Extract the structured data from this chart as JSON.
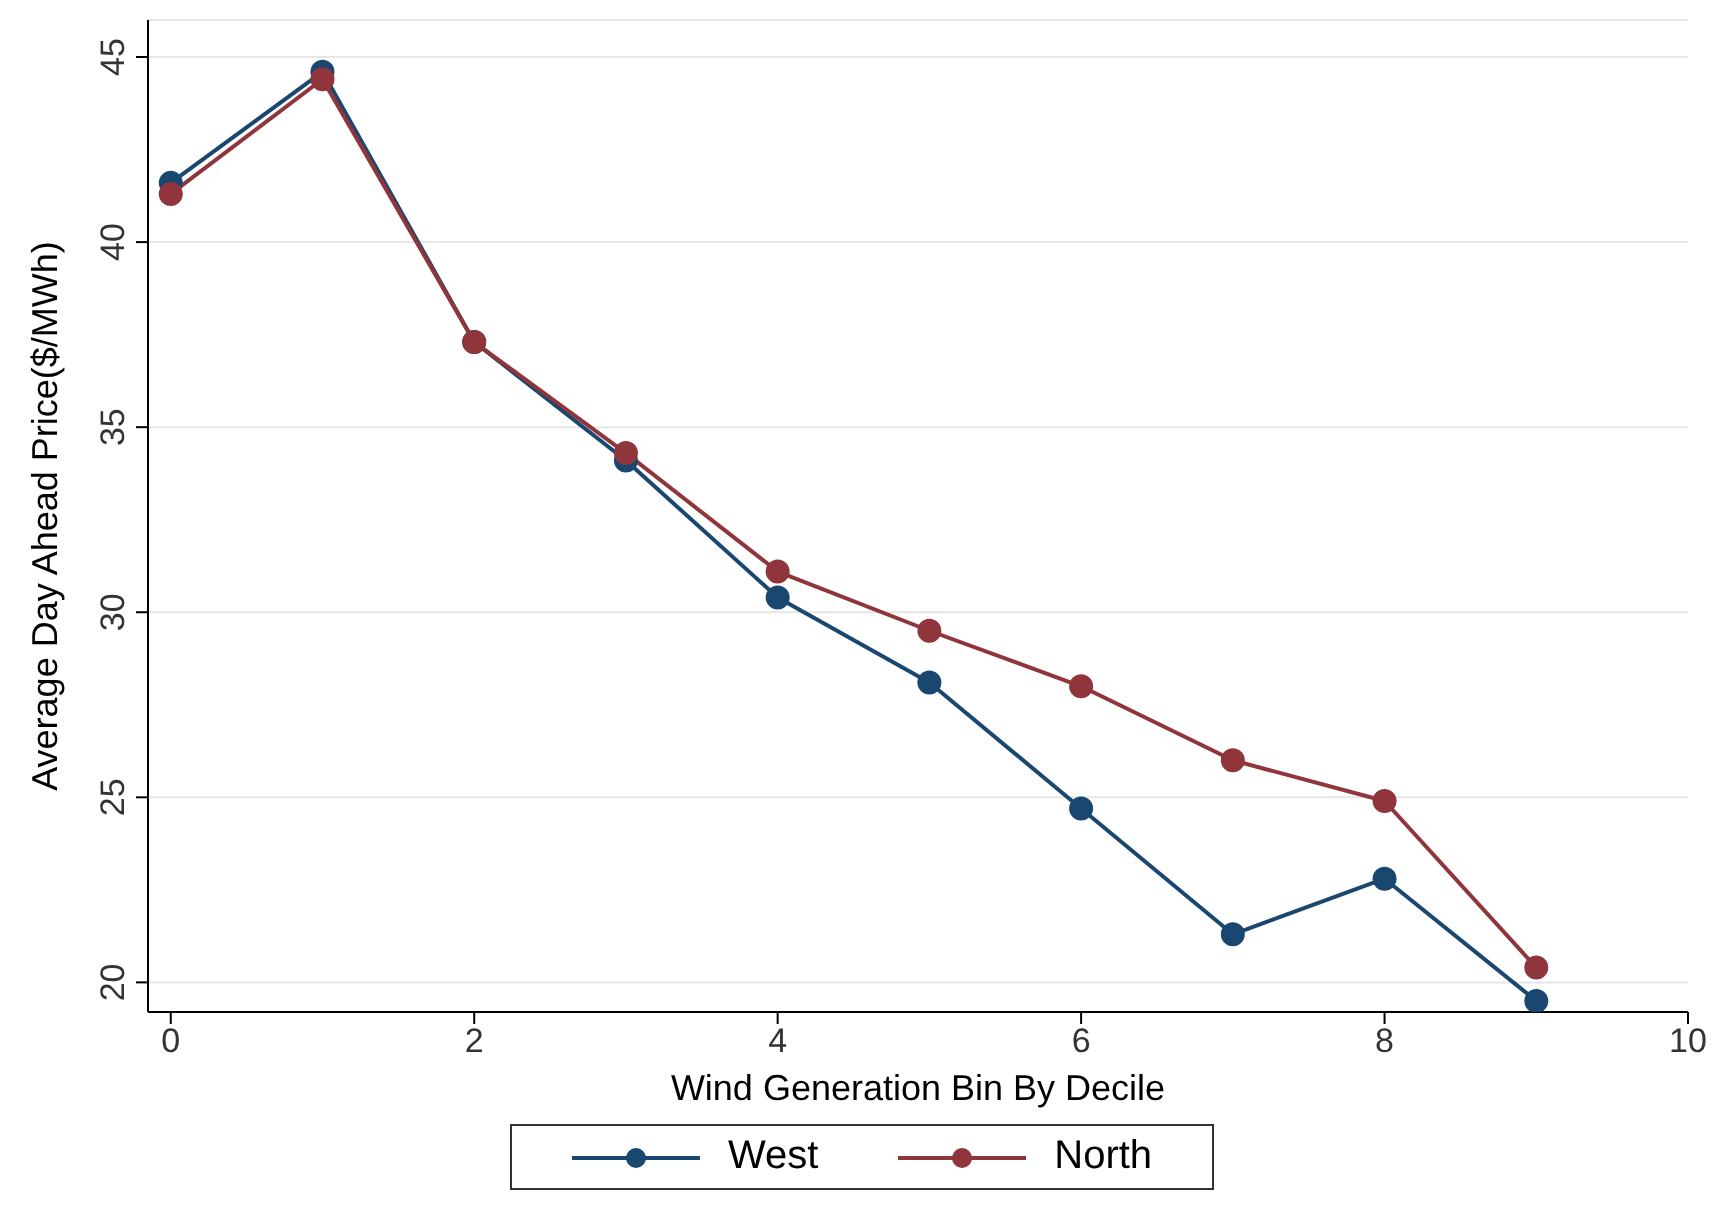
{
  "chart_data": {
    "type": "line",
    "xlabel": "Wind Generation Bin By Decile",
    "ylabel": "Average Day Ahead Price($/MWh)",
    "x": [
      0,
      1,
      2,
      3,
      4,
      5,
      6,
      7,
      8,
      9
    ],
    "series": [
      {
        "name": "West",
        "color": "#1a476f",
        "values": [
          41.6,
          44.6,
          37.3,
          34.1,
          30.4,
          28.1,
          24.7,
          21.3,
          22.8,
          19.5
        ]
      },
      {
        "name": "North",
        "color": "#90353b",
        "values": [
          41.3,
          44.4,
          37.3,
          34.3,
          31.1,
          29.5,
          28.0,
          26.0,
          24.9,
          20.4
        ]
      }
    ],
    "xlim": [
      -0.15,
      10
    ],
    "xticks": [
      0,
      2,
      4,
      6,
      8,
      10
    ],
    "ylim": [
      19.2,
      46
    ],
    "yticks": [
      20,
      25,
      30,
      35,
      40,
      45
    ],
    "grid": "y",
    "legend": "bottom",
    "marker": "circle",
    "line_style": "solid"
  }
}
